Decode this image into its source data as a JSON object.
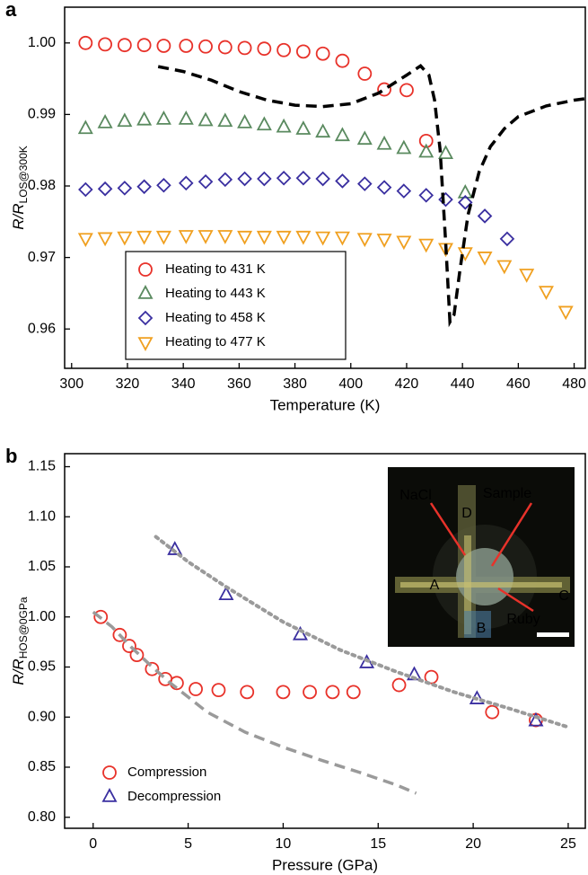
{
  "chart_data": [
    {
      "type": "scatter",
      "panel_label": "a",
      "x_label": "Temperature (K)",
      "y_label": "R/R",
      "y_label_sub": "LOS@300K",
      "xlim": [
        297.5,
        484
      ],
      "ylim": [
        0.9545,
        1.005
      ],
      "xticks": [
        300,
        320,
        340,
        360,
        380,
        400,
        420,
        440,
        460,
        480
      ],
      "yticks": [
        0.96,
        0.97,
        0.98,
        0.99,
        {
          "value": 1,
          "label": "1.00"
        }
      ],
      "grid": false,
      "legend": "lower left",
      "series": [
        {
          "name": "Heating to 431 K",
          "color": "#e8322a",
          "marker": "circle",
          "x": [
            305,
            312,
            319,
            326,
            333,
            341,
            348,
            355,
            362,
            369,
            376,
            383,
            390,
            397,
            405,
            412,
            420,
            427
          ],
          "values": [
            1.0,
            0.9998,
            0.9997,
            0.9997,
            0.9996,
            0.9996,
            0.9995,
            0.9994,
            0.9993,
            0.9992,
            0.999,
            0.9988,
            0.9985,
            0.9975,
            0.9957,
            0.9935,
            0.9934,
            0.9863
          ]
        },
        {
          "name": "Heating to 443 K",
          "color": "#5a8a5f",
          "marker": "triangle-up",
          "x": [
            305,
            312,
            319,
            326,
            333,
            341,
            348,
            355,
            362,
            369,
            376,
            383,
            390,
            397,
            405,
            412,
            419,
            427,
            434,
            441
          ],
          "values": [
            0.988,
            0.9888,
            0.989,
            0.9892,
            0.9893,
            0.9893,
            0.9891,
            0.989,
            0.9888,
            0.9885,
            0.9882,
            0.9879,
            0.9875,
            0.987,
            0.9865,
            0.9858,
            0.9852,
            0.9847,
            0.9845,
            0.979
          ]
        },
        {
          "name": "Heating to 458 K",
          "color": "#3a2fa0",
          "marker": "diamond",
          "x": [
            305,
            312,
            319,
            326,
            333,
            341,
            348,
            355,
            362,
            369,
            376,
            383,
            390,
            397,
            405,
            412,
            419,
            427,
            434,
            441,
            448,
            456
          ],
          "values": [
            0.9795,
            0.9796,
            0.9797,
            0.9799,
            0.9801,
            0.9804,
            0.9806,
            0.9809,
            0.981,
            0.981,
            0.9811,
            0.9811,
            0.981,
            0.9807,
            0.9803,
            0.9798,
            0.9793,
            0.9787,
            0.9781,
            0.9777,
            0.9758,
            0.9726
          ]
        },
        {
          "name": "Heating to 477 K",
          "color": "#f0a020",
          "marker": "triangle-down",
          "x": [
            305,
            312,
            319,
            326,
            333,
            341,
            348,
            355,
            362,
            369,
            376,
            383,
            390,
            397,
            405,
            412,
            419,
            427,
            434,
            441,
            448,
            455,
            463,
            470,
            477
          ],
          "values": [
            0.9727,
            0.9728,
            0.9729,
            0.973,
            0.973,
            0.9731,
            0.9731,
            0.9731,
            0.973,
            0.973,
            0.973,
            0.973,
            0.9729,
            0.9729,
            0.9727,
            0.9726,
            0.9723,
            0.9719,
            0.9713,
            0.9707,
            0.9701,
            0.9689,
            0.9677,
            0.9653,
            0.9625
          ]
        },
        {
          "color": "#000000",
          "line": "dashed",
          "x": [
            331,
            340,
            350,
            360,
            370,
            380,
            390,
            400,
            410,
            420,
            425,
            428,
            430,
            432,
            434,
            435.5,
            437,
            439,
            442,
            446,
            450,
            455,
            460,
            470,
            480,
            484
          ],
          "values": [
            0.9967,
            0.996,
            0.9948,
            0.9932,
            0.992,
            0.9913,
            0.9911,
            0.9915,
            0.993,
            0.9955,
            0.9968,
            0.9955,
            0.992,
            0.985,
            0.972,
            0.961,
            0.962,
            0.968,
            0.976,
            0.982,
            0.9855,
            0.988,
            0.9897,
            0.9912,
            0.992,
            0.9922
          ]
        }
      ]
    },
    {
      "type": "scatter",
      "panel_label": "b",
      "x_label": "Pressure (GPa)",
      "y_label": "R/R",
      "y_label_sub": "HOS@0GPa",
      "xlim": [
        -1.5,
        25.9
      ],
      "ylim": [
        0.789,
        1.163
      ],
      "xticks": [
        0,
        5,
        10,
        15,
        20,
        25
      ],
      "yticks": [
        {
          "value": 0.8,
          "label": "0.80"
        },
        0.85,
        {
          "value": 0.9,
          "label": "0.90"
        },
        0.95,
        {
          "value": 1,
          "label": "1.00"
        },
        1.05,
        {
          "value": 1.1,
          "label": "1.10"
        },
        1.15
      ],
      "grid": false,
      "legend": "lower left",
      "series": [
        {
          "name": "Compression",
          "color": "#e8322a",
          "marker": "circle",
          "x": [
            0.4,
            1.4,
            1.9,
            2.3,
            3.1,
            3.8,
            4.4,
            5.4,
            6.6,
            8.1,
            10.0,
            11.4,
            12.6,
            13.7,
            16.1,
            17.8,
            21.0,
            23.3
          ],
          "values": [
            1.0,
            0.982,
            0.971,
            0.962,
            0.948,
            0.938,
            0.934,
            0.928,
            0.927,
            0.925,
            0.925,
            0.925,
            0.925,
            0.925,
            0.932,
            0.94,
            0.905,
            0.897
          ]
        },
        {
          "name": "Decompression",
          "color": "#3a2fa0",
          "marker": "triangle-up",
          "x": [
            4.3,
            7.0,
            10.9,
            14.4,
            16.9,
            20.2,
            23.3
          ],
          "values": [
            1.067,
            1.022,
            0.982,
            0.954,
            0.942,
            0.918,
            0.896
          ]
        },
        {
          "color": "#9a9a9a",
          "line": "dashed",
          "x": [
            0,
            1,
            2,
            3,
            4,
            5,
            6,
            8,
            10,
            12,
            14,
            16,
            17
          ],
          "values": [
            1.005,
            0.99,
            0.97,
            0.952,
            0.935,
            0.92,
            0.905,
            0.885,
            0.87,
            0.857,
            0.845,
            0.832,
            0.824
          ]
        },
        {
          "color": "#9a9a9a",
          "line": "dotted",
          "x": [
            3.3,
            5,
            7,
            10,
            13,
            16,
            19,
            22,
            25
          ],
          "values": [
            1.08,
            1.055,
            1.03,
            0.995,
            0.967,
            0.945,
            0.925,
            0.908,
            0.89
          ]
        }
      ],
      "inset": {
        "labels": [
          "NaCl",
          "Sample",
          "D",
          "A",
          "C",
          "Ruby",
          "B"
        ]
      }
    }
  ]
}
